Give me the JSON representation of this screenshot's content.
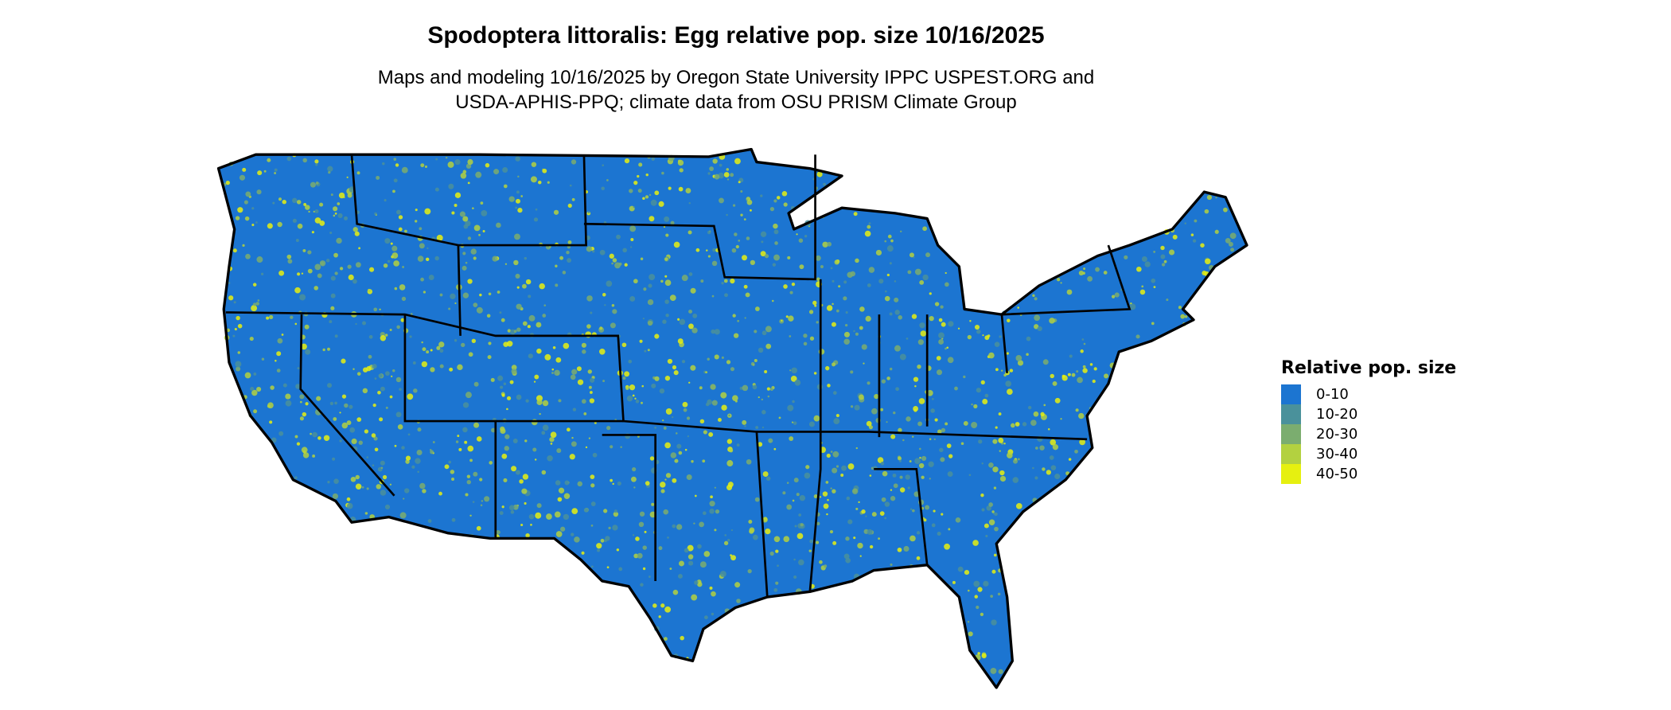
{
  "title": "Spodoptera littoralis: Egg relative pop. size 10/16/2025",
  "subtitle_lines": [
    "Maps and modeling 10/16/2025 by Oregon State University IPPC USPEST.ORG and",
    "USDA-APHIS-PPQ; climate data from OSU PRISM Climate Group"
  ],
  "map": {
    "region": "Contiguous United States",
    "state_borders": true,
    "border_color": "#000000"
  },
  "legend": {
    "title": "Relative pop. size",
    "items": [
      {
        "label": "0-10",
        "color": "#1c75d1"
      },
      {
        "label": "10-20",
        "color": "#4a919b"
      },
      {
        "label": "20-30",
        "color": "#7bad6f"
      },
      {
        "label": "30-40",
        "color": "#b3d140"
      },
      {
        "label": "40-50",
        "color": "#e6f010"
      }
    ]
  }
}
